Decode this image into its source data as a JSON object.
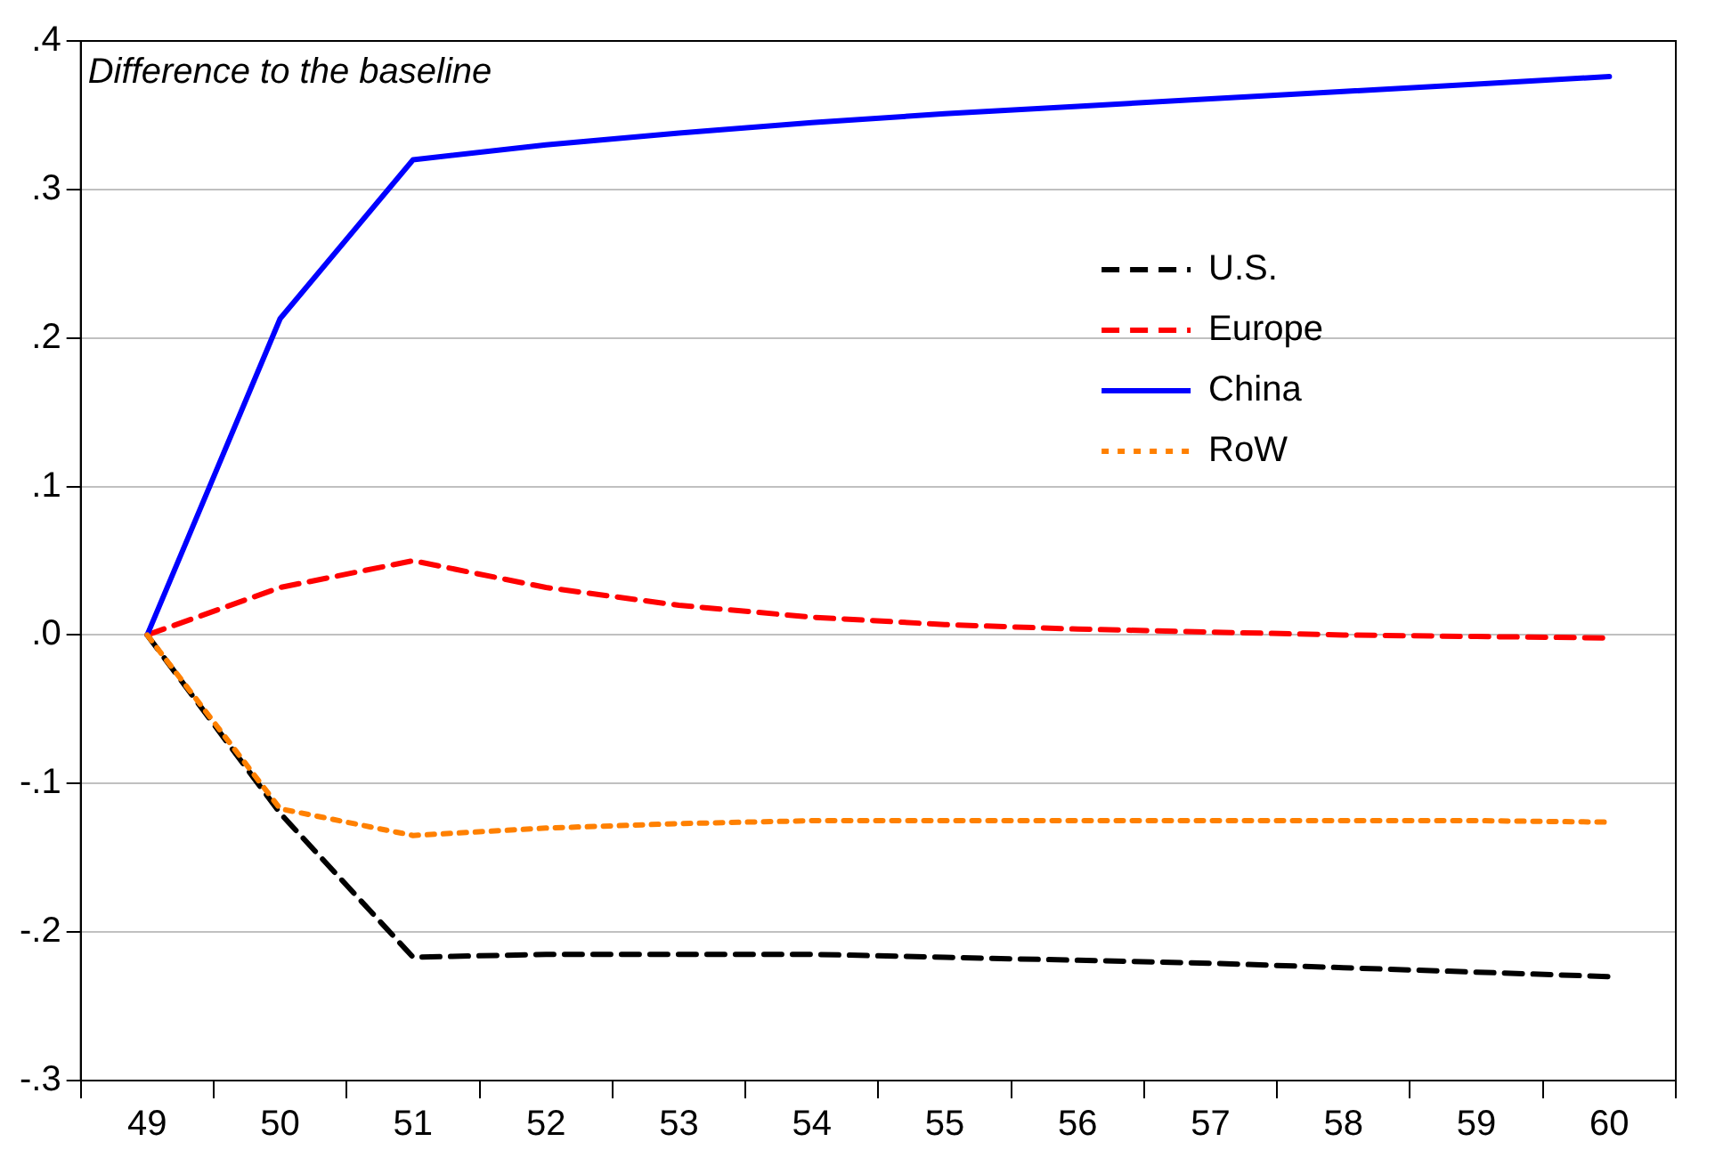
{
  "chart_data": {
    "type": "line",
    "categories": [
      "49",
      "50",
      "51",
      "52",
      "53",
      "54",
      "55",
      "56",
      "57",
      "58",
      "59",
      "60"
    ],
    "series": [
      {
        "name": "U.S.",
        "color": "#000000",
        "line_style": "dashed",
        "values": [
          0,
          -0.12,
          -0.217,
          -0.215,
          -0.215,
          -0.215,
          -0.217,
          -0.219,
          -0.221,
          -0.224,
          -0.227,
          -0.23
        ]
      },
      {
        "name": "Europe",
        "color": "#ff0000",
        "line_style": "dashed",
        "values": [
          0,
          0.032,
          0.05,
          0.032,
          0.02,
          0.012,
          0.007,
          0.004,
          0.002,
          0,
          -0.001,
          -0.002
        ]
      },
      {
        "name": "China",
        "color": "#0000ff",
        "line_style": "solid",
        "values": [
          0,
          0.213,
          0.32,
          0.33,
          0.338,
          0.345,
          0.351,
          0.356,
          0.361,
          0.366,
          0.371,
          0.376
        ]
      },
      {
        "name": "RoW",
        "color": "#ff8000",
        "line_style": "dotted",
        "values": [
          0,
          -0.117,
          -0.135,
          -0.13,
          -0.127,
          -0.125,
          -0.125,
          -0.125,
          -0.125,
          -0.125,
          -0.125,
          -0.126
        ]
      }
    ],
    "ylim": [
      -0.3,
      0.4
    ],
    "yticks": [
      {
        "value": -0.3,
        "label": "-.3"
      },
      {
        "value": -0.2,
        "label": "-.2"
      },
      {
        "value": -0.1,
        "label": "-.1"
      },
      {
        "value": 0,
        "label": ".0"
      },
      {
        "value": 0.1,
        "label": ".1"
      },
      {
        "value": 0.2,
        "label": ".2"
      },
      {
        "value": 0.3,
        "label": ".3"
      },
      {
        "value": 0.4,
        "label": ".4"
      }
    ],
    "annotations": [
      "Difference to the baseline"
    ],
    "grid": "y",
    "legend": "right",
    "marker": "none"
  }
}
